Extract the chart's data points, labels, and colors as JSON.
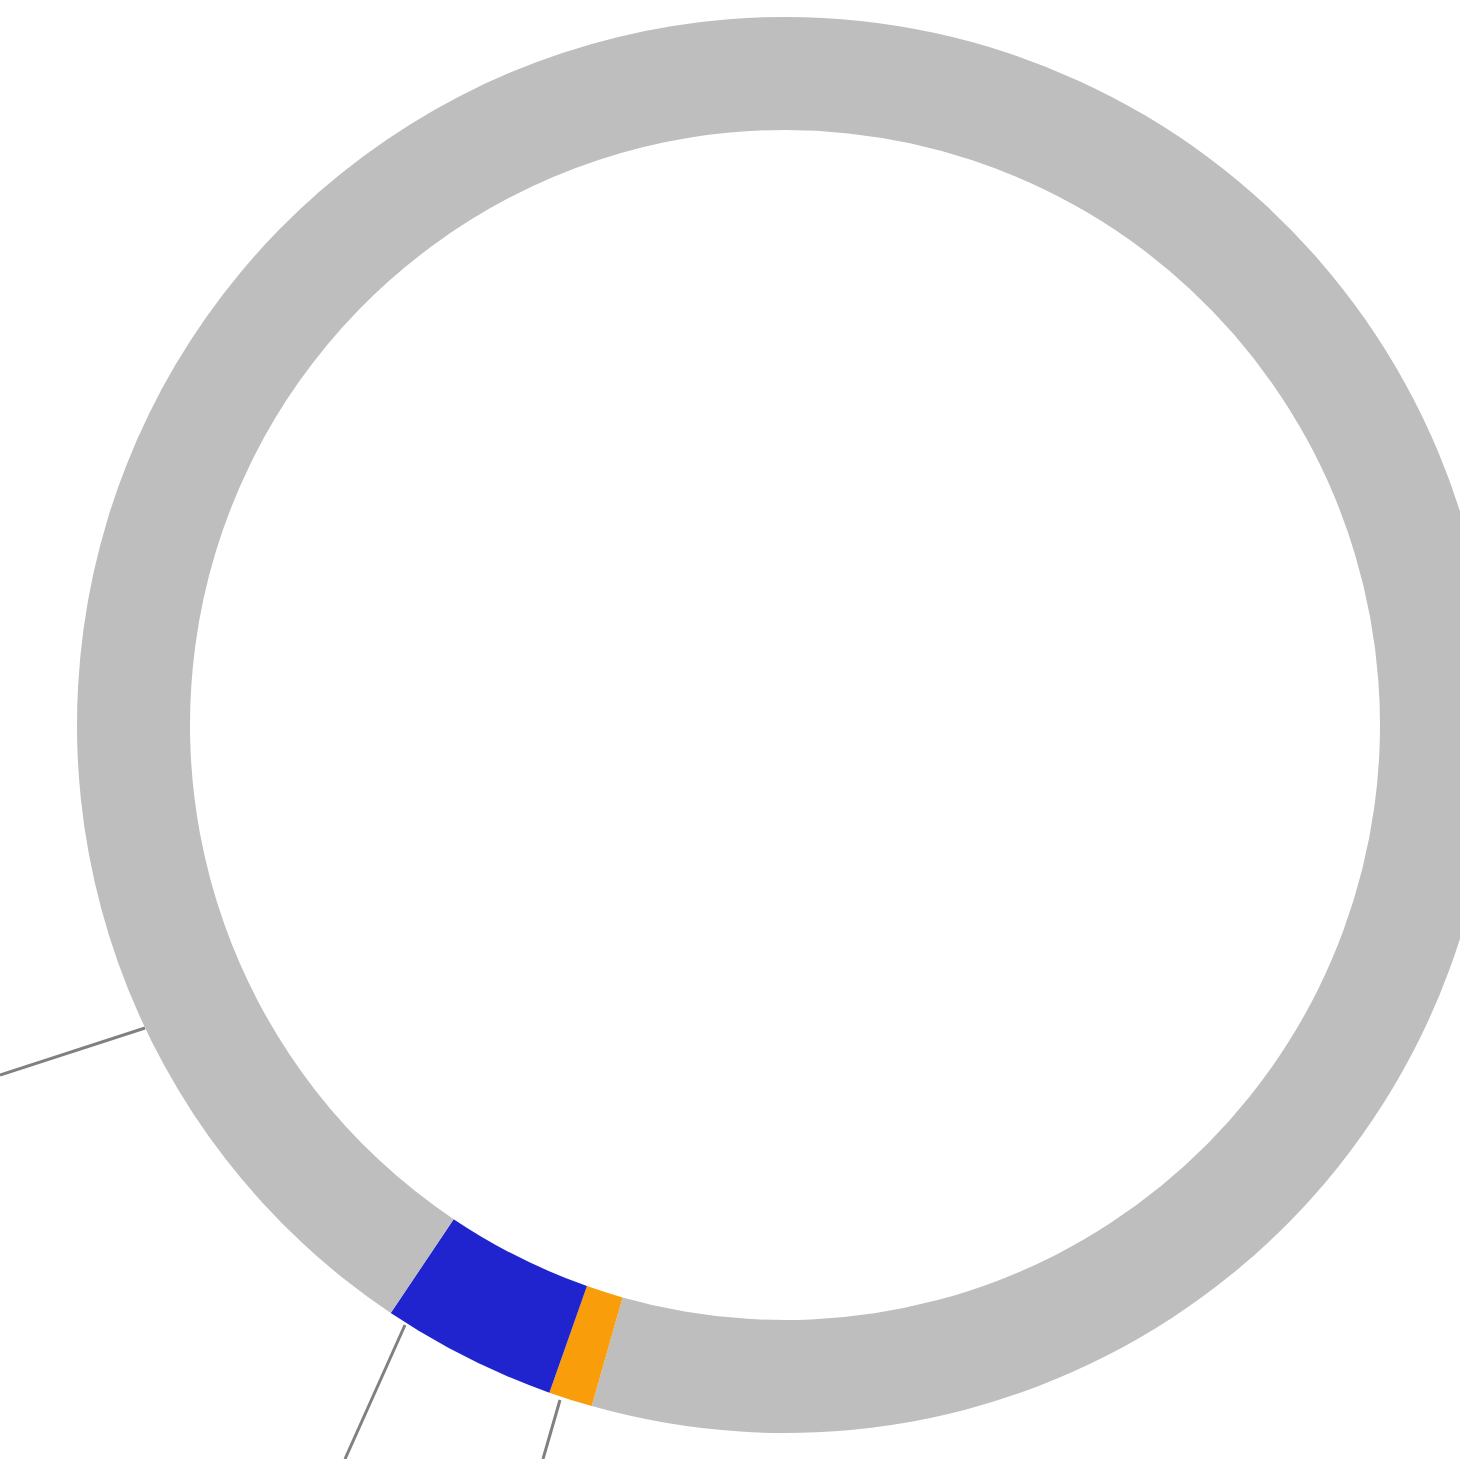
{
  "chart_data": {
    "type": "donut",
    "categories": [
      null,
      null,
      null,
      null
    ],
    "values": [
      54.4,
      1.0,
      4.0,
      40.6
    ],
    "colors": [
      "#bebebe",
      "#f99d0b",
      "#2024cf",
      "#bebebe"
    ]
  }
}
